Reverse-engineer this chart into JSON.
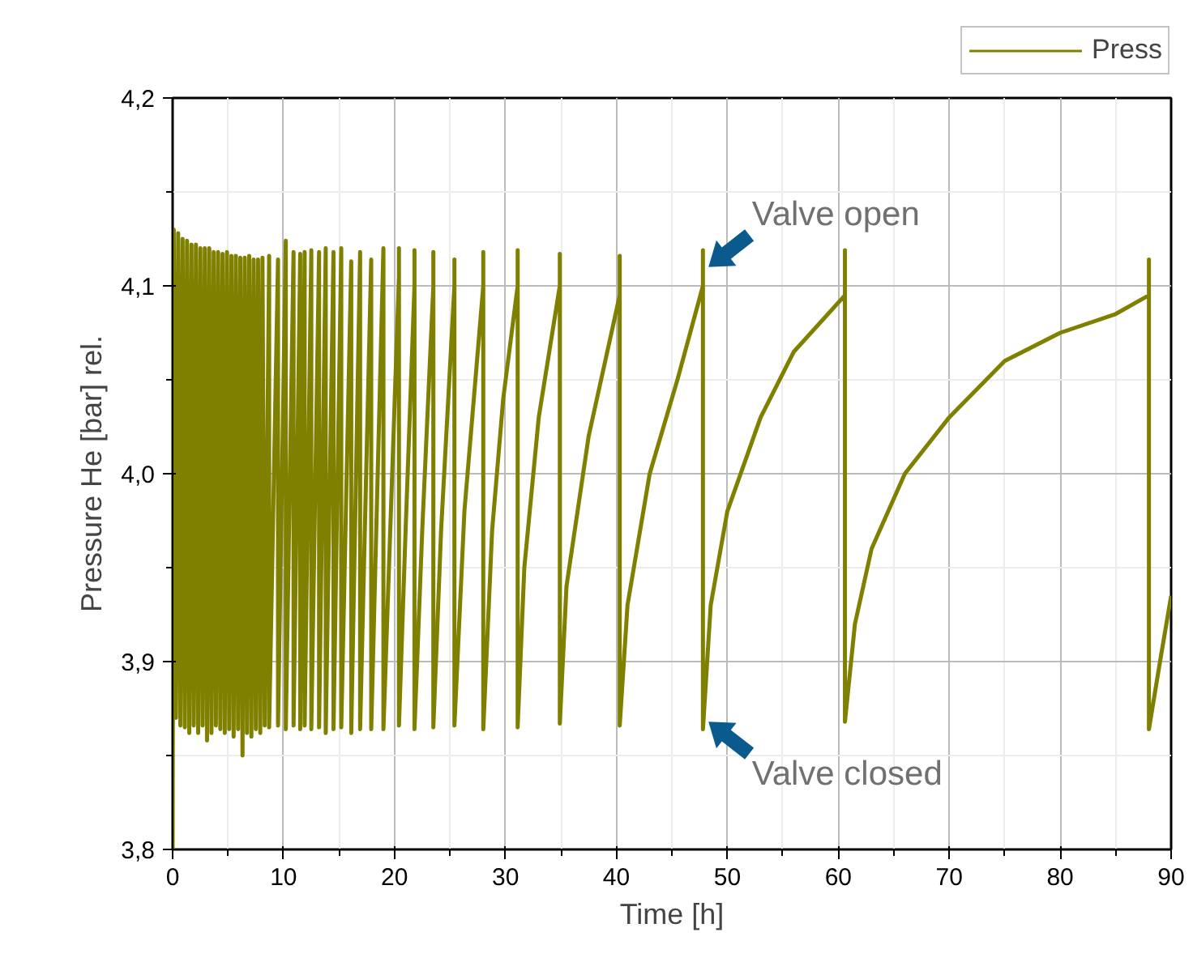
{
  "chart_data": {
    "type": "line",
    "xlabel": "Time [h]",
    "ylabel": "Pressure He [bar] rel.",
    "xlim": [
      0,
      90
    ],
    "ylim": [
      3.8,
      4.2
    ],
    "xticks": [
      0,
      10,
      20,
      30,
      40,
      50,
      60,
      70,
      80,
      90
    ],
    "yticks": [
      {
        "value": 3.8,
        "label": "3,8"
      },
      {
        "value": 3.9,
        "label": "3,9"
      },
      {
        "value": 4.0,
        "label": "4,0"
      },
      {
        "value": 4.1,
        "label": "4,1"
      },
      {
        "value": 4.2,
        "label": "4,2"
      }
    ],
    "grid": true,
    "legend": "top right",
    "annotations": [
      {
        "text": "Valve open",
        "x": 47.8,
        "y": 4.11
      },
      {
        "text": "Valve closed",
        "x": 47.8,
        "y": 3.868
      }
    ],
    "series": [
      {
        "name": "Press",
        "color": "#808000",
        "x": [
          0,
          0.1,
          0.3,
          0.5,
          0.7,
          0.9,
          1.1,
          1.3,
          1.5,
          1.7,
          1.9,
          2.1,
          2.3,
          2.5,
          2.7,
          2.9,
          3.1,
          3.3,
          3.5,
          3.7,
          3.9,
          4.1,
          4.3,
          4.5,
          4.7,
          4.9,
          5.1,
          5.3,
          5.5,
          5.7,
          5.9,
          6.1,
          6.3,
          6.5,
          6.7,
          6.9,
          7.1,
          7.3,
          7.5,
          7.7,
          7.9,
          8.1,
          8.3,
          8.7,
          8.7,
          9.5,
          9.5,
          10.2,
          10.2,
          10.9,
          10.9,
          11.5,
          11.5,
          11.9,
          11.9,
          12.5,
          12.5,
          13.2,
          13.2,
          13.8,
          13.8,
          14.5,
          14.5,
          15.2,
          15.2,
          16.1,
          16.1,
          16.9,
          16.9,
          17.9,
          17.9,
          19.0,
          19.0,
          20.4,
          20.4,
          20.4,
          21.0,
          21.8,
          21.8,
          21.8,
          22.5,
          23.5,
          23.5,
          23.5,
          24.2,
          25.4,
          25.4,
          25.4,
          26.3,
          28.0,
          28.0,
          28.0,
          28.8,
          29.8,
          31.1,
          31.1,
          31.1,
          31.7,
          33.0,
          34.9,
          34.9,
          34.9,
          35.5,
          37.5,
          40.3,
          40.3,
          40.3,
          41.0,
          43.0,
          45.5,
          47.8,
          47.8,
          47.8,
          48.5,
          50.0,
          53.0,
          56.0,
          60.6,
          60.6,
          60.6,
          61.5,
          63.0,
          66.0,
          70.0,
          75.0,
          80.0,
          85.0,
          88.0,
          88.0,
          88.0,
          89.0,
          90.0
        ],
        "values": [
          3.8,
          4.13,
          3.87,
          4.128,
          3.866,
          4.125,
          3.865,
          4.124,
          3.862,
          4.122,
          3.866,
          4.122,
          3.862,
          4.12,
          3.866,
          4.12,
          3.858,
          4.12,
          3.862,
          4.118,
          3.866,
          4.118,
          3.864,
          4.117,
          3.862,
          4.118,
          3.864,
          4.116,
          3.86,
          4.116,
          3.864,
          4.115,
          3.85,
          4.115,
          3.862,
          4.116,
          3.86,
          4.114,
          3.864,
          4.114,
          3.862,
          4.115,
          3.866,
          4.116,
          3.865,
          4.114,
          3.866,
          4.124,
          3.864,
          4.118,
          3.866,
          4.117,
          3.864,
          4.118,
          3.866,
          4.119,
          3.864,
          4.118,
          3.865,
          4.12,
          3.862,
          4.118,
          3.864,
          4.12,
          3.865,
          4.113,
          3.862,
          4.118,
          3.864,
          4.114,
          3.864,
          4.12,
          3.864,
          4.105,
          4.12,
          3.866,
          3.97,
          4.1,
          4.119,
          3.864,
          3.97,
          4.1,
          4.118,
          3.865,
          3.97,
          4.1,
          4.114,
          3.866,
          3.98,
          4.1,
          4.118,
          3.864,
          3.97,
          4.04,
          4.1,
          4.119,
          3.865,
          3.95,
          4.03,
          4.1,
          4.117,
          3.867,
          3.94,
          4.02,
          4.095,
          4.116,
          3.866,
          3.93,
          4.0,
          4.05,
          4.1,
          4.119,
          3.864,
          3.93,
          3.98,
          4.03,
          4.065,
          4.095,
          4.119,
          3.868,
          3.92,
          3.96,
          4.0,
          4.03,
          4.06,
          4.075,
          4.085,
          4.095,
          4.114,
          3.864,
          3.9,
          3.935
        ]
      }
    ]
  }
}
